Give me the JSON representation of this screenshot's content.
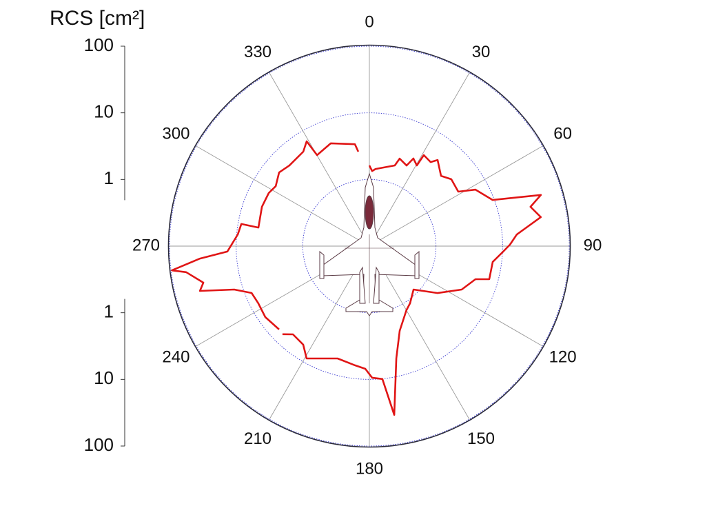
{
  "chart_data": {
    "type": "polar",
    "r_label": "RCS [cm²]",
    "log_scale": true,
    "rlim": [
      0.1,
      100
    ],
    "rticks": [
      1,
      10,
      100
    ],
    "angle_ticks": [
      0,
      30,
      60,
      90,
      120,
      150,
      180,
      210,
      240,
      270,
      300,
      330
    ],
    "color": "#e01515",
    "x": [
      0,
      2.1,
      4.6,
      17.5,
      19.1,
      24.8,
      26.7,
      30.5,
      30.9,
      36.1,
      38.4,
      45.6,
      50.8,
      58.5,
      62,
      69.5,
      73.4,
      76.3,
      80.4,
      85.5,
      89.4,
      92.4,
      97.3,
      105.4,
      107.3,
      115.2,
      124.5,
      134.5,
      144.6,
      149.9,
      160.3,
      166.5,
      171.6,
      174.4,
      178.8,
      181.9,
      186.9,
      195.8,
      209.2,
      213.9,
      220.9,
      224.6,
      226,
      227.3,
      235.7,
      242.7,
      248.3,
      252.2,
      255.2,
      257.6,
      261.9,
      263,
      265.8,
      267.8,
      275.1,
      279.8,
      279.5,
      290.1,
      297.8,
      302.6,
      309.2,
      315.2,
      325,
      329.1,
      330.1,
      339.4,
      351.9,
      353.3
    ],
    "values": [
      1.62,
      1.34,
      1.45,
      1.86,
      2.45,
      2.15,
      2.96,
      2.54,
      3.9,
      3.64,
      4.46,
      3.21,
      3.87,
      3.67,
      6.38,
      9.47,
      48.6,
      30.9,
      40.8,
      16.6,
      12.9,
      10.2,
      7.36,
      7.36,
      4.66,
      3.4,
      1.75,
      0.85,
      1.13,
      1.29,
      2.24,
      5.41,
      36.3,
      10.1,
      9.45,
      6.95,
      6.34,
      5.65,
      8.53,
      6.04,
      5.65,
      7.2,
      null,
      6.98,
      7.77,
      7.5,
      8.0,
      13.5,
      42.8,
      35.6,
      60.1,
      97,
      35.5,
      13.6,
      9.6,
      8.93,
      4.88,
      5.22,
      5.1,
      4.67,
      5.6,
      5.06,
      5.37,
      6.8,
      3.76,
      4.44,
      3.5,
      2.67
    ]
  }
}
